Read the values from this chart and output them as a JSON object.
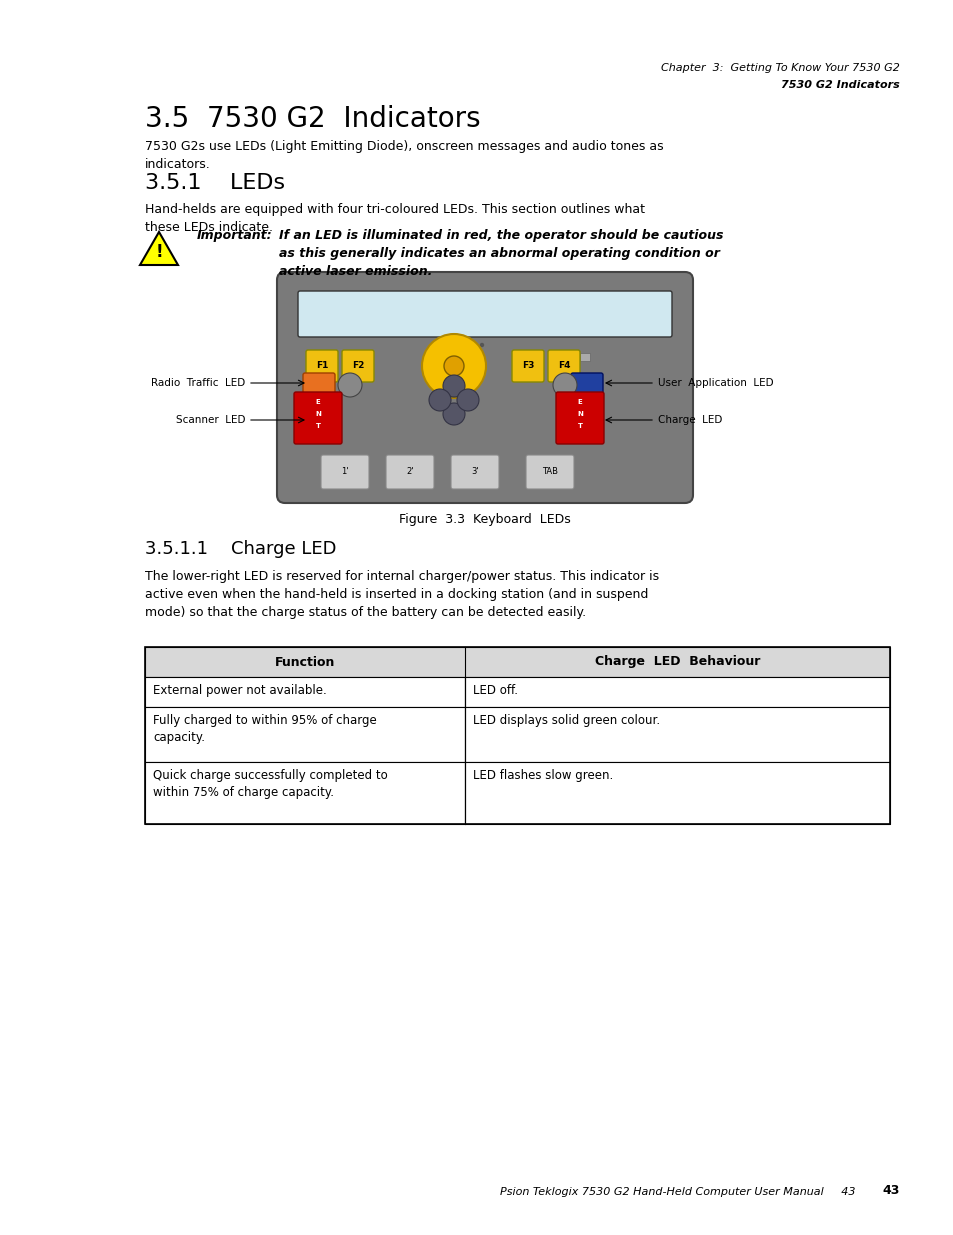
{
  "page_width": 9.54,
  "page_height": 12.35,
  "bg_color": "#ffffff",
  "header_line1": "Chapter  3:  Getting To Know Your 7530 G2",
  "header_line2": "7530 G2 Indicators",
  "section_title": "3.5  7530 G2  Indicators",
  "section_body": "7530 G2s use LEDs (Light Emitting Diode), onscreen messages and audio tones as\nindicators.",
  "subsection_title": "3.5.1    LEDs",
  "subsection_body": "Hand-helds are equipped with four tri-coloured LEDs. This section outlines what\nthese LEDs indicate.",
  "important_label": "Important:",
  "important_text": "If an LED is illuminated in red, the operator should be cautious\nas this generally indicates an abnormal operating condition or\nactive laser emission.",
  "figure_caption": "Figure  3.3  Keyboard  LEDs",
  "subsubsection_title": "3.5.1.1    Charge LED",
  "charge_body": "The lower-right LED is reserved for internal charger/power status. This indicator is\nactive even when the hand-held is inserted in a docking station (and in suspend\nmode) so that the charge status of the battery can be detected easily.",
  "table_header_col1": "Function",
  "table_header_col2": "Charge  LED  Behaviour",
  "table_rows": [
    [
      "External power not available.",
      "LED off."
    ],
    [
      "Fully charged to within 95% of charge\ncapacity.",
      "LED displays solid green colour."
    ],
    [
      "Quick charge successfully completed to\nwithin 75% of charge capacity.",
      "LED flashes slow green."
    ]
  ],
  "footer_text": "Psion Teklogix 7530 G2 Hand-Held Computer User Manual",
  "footer_page": "43",
  "label_radio": "Radio  Traffic  LED",
  "label_user": "User  Application  LED",
  "label_scanner": "Scanner  LED",
  "label_charge": "Charge  LED"
}
